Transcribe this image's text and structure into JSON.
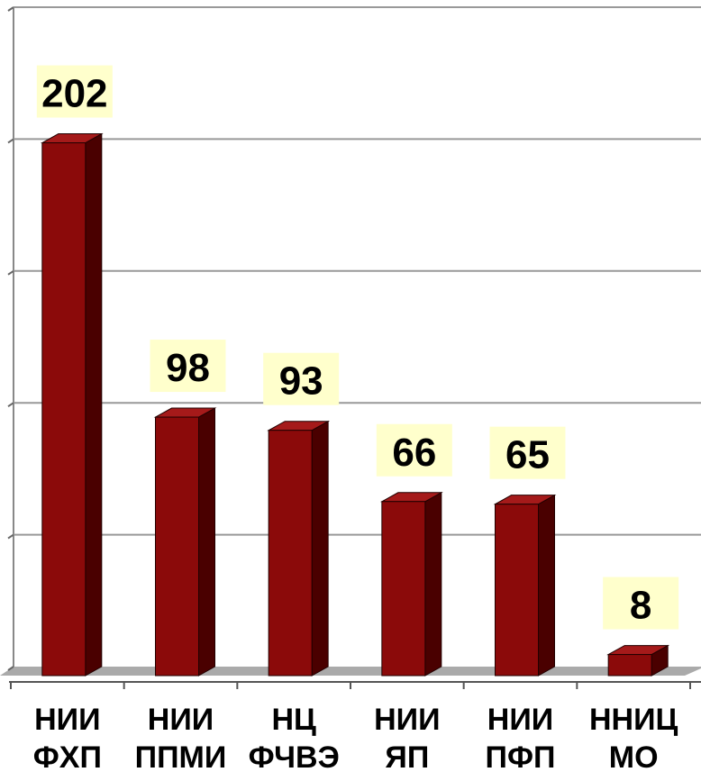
{
  "chart_data": {
    "type": "bar",
    "categories": [
      "НИИ ФХП",
      "НИИ ППМИ",
      "НЦ ФЧВЭ",
      "НИИ ЯП",
      "НИИ ПФП",
      "ННИЦ МО"
    ],
    "values": [
      202,
      98,
      93,
      66,
      65,
      8
    ],
    "color": "#8b0a0a",
    "ylim": [
      0,
      250
    ],
    "yticks": [
      0,
      50,
      100,
      150,
      200,
      250
    ],
    "grid": true
  }
}
